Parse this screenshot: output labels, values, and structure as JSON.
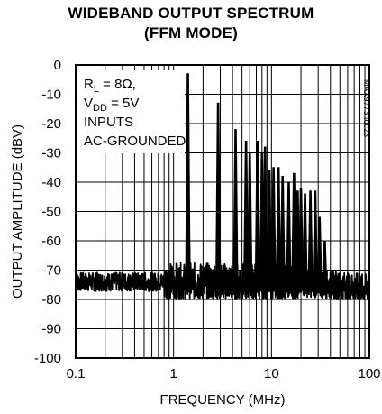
{
  "chart_data": {
    "type": "line",
    "title": [
      "WIDEBAND OUTPUT SPECTRUM",
      "(FFM MODE)"
    ],
    "xlabel": "FREQUENCY (MHz)",
    "ylabel": "OUTPUT AMPLITUDE (dBV)",
    "x_scale": "log",
    "xlim": [
      0.1,
      100
    ],
    "ylim": [
      -100,
      0
    ],
    "x_ticks": [
      "0.1",
      "1",
      "10",
      "100"
    ],
    "y_ticks": [
      "0",
      "-10",
      "-20",
      "-30",
      "-40",
      "-50",
      "-60",
      "-70",
      "-80",
      "-90",
      "-100"
    ],
    "grid": true,
    "annotations": {
      "conditions": [
        {
          "main": "R",
          "sub": "L",
          "rest": " = 8Ω,"
        },
        {
          "main": "V",
          "sub": "DD",
          "rest": " = 5V"
        },
        {
          "main": "INPUTS",
          "sub": "",
          "rest": ""
        },
        {
          "main": "AC-GROUNDED",
          "sub": "",
          "rest": ""
        }
      ],
      "part_number": "MAX9773 toc23"
    },
    "noise_floor_dBV": -74,
    "peaks": [
      {
        "x": 1.4,
        "y": -3
      },
      {
        "x": 1.42,
        "y": -53
      },
      {
        "x": 2.85,
        "y": -13
      },
      {
        "x": 2.9,
        "y": -56
      },
      {
        "x": 4.3,
        "y": -22
      },
      {
        "x": 5.5,
        "y": -26
      },
      {
        "x": 6.0,
        "y": -30
      },
      {
        "x": 7.2,
        "y": -26
      },
      {
        "x": 8.0,
        "y": -30
      },
      {
        "x": 8.6,
        "y": -28
      },
      {
        "x": 9.5,
        "y": -36
      },
      {
        "x": 10.5,
        "y": -35
      },
      {
        "x": 11.8,
        "y": -35
      },
      {
        "x": 13.0,
        "y": -38
      },
      {
        "x": 15.0,
        "y": -40
      },
      {
        "x": 17.0,
        "y": -37
      },
      {
        "x": 18.5,
        "y": -43
      },
      {
        "x": 20.0,
        "y": -42
      },
      {
        "x": 22.0,
        "y": -44
      },
      {
        "x": 25.0,
        "y": -43
      },
      {
        "x": 28.0,
        "y": -43
      },
      {
        "x": 31.0,
        "y": -52
      },
      {
        "x": 35.0,
        "y": -60
      },
      {
        "x": 42.0,
        "y": -71
      }
    ]
  }
}
